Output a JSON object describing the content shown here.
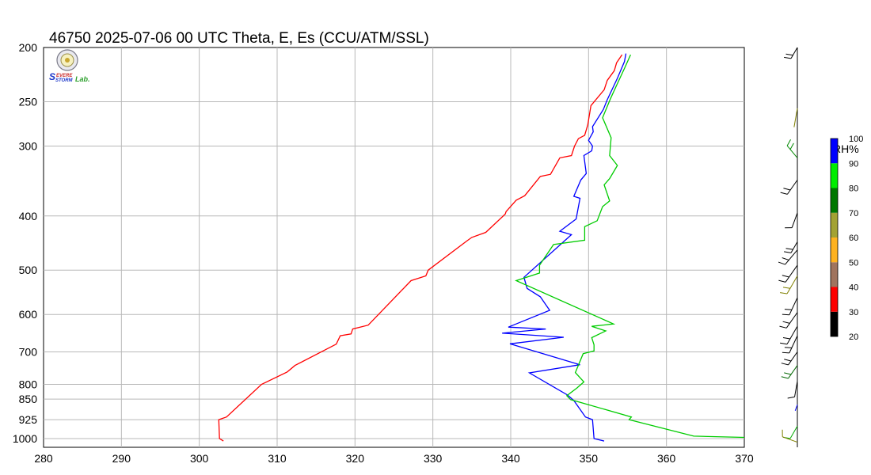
{
  "chart_data": {
    "type": "line",
    "title": "46750  2025-07-06 00 UTC  Theta, E, Es (CCU/ATM/SSL)",
    "xlim": [
      280,
      370
    ],
    "x_ticks": [
      "280",
      "290",
      "300",
      "310",
      "320",
      "330",
      "340",
      "350",
      "360",
      "370"
    ],
    "y_ticks": [
      {
        "p": 200,
        "label": "200"
      },
      {
        "p": 250,
        "label": "250"
      },
      {
        "p": 300,
        "label": "300"
      },
      {
        "p": 400,
        "label": "400"
      },
      {
        "p": 500,
        "label": "500"
      },
      {
        "p": 600,
        "label": "600"
      },
      {
        "p": 700,
        "label": "700"
      },
      {
        "p": 800,
        "label": "800"
      },
      {
        "p": 850,
        "label": "850"
      },
      {
        "p": 925,
        "label": "925"
      },
      {
        "p": 1000,
        "label": "1000"
      }
    ],
    "grid": true,
    "series": [
      {
        "color": "#ff0000",
        "points": [
          [
            303.1,
            1010
          ],
          [
            302.6,
            1000
          ],
          [
            302.5,
            925
          ],
          [
            303.5,
            915
          ],
          [
            308.0,
            800
          ],
          [
            311.3,
            760
          ],
          [
            312.3,
            740
          ],
          [
            317.6,
            678
          ],
          [
            318.1,
            655
          ],
          [
            319.5,
            650
          ],
          [
            319.7,
            637
          ],
          [
            321.7,
            627
          ],
          [
            327.2,
            522
          ],
          [
            329.1,
            512
          ],
          [
            329.4,
            500
          ],
          [
            334.4,
            443
          ],
          [
            335.0,
            437
          ],
          [
            336.8,
            428
          ],
          [
            339.3,
            397
          ],
          [
            339.4,
            393
          ],
          [
            340.7,
            375
          ],
          [
            341.8,
            368
          ],
          [
            343.8,
            340
          ],
          [
            345.1,
            337
          ],
          [
            346.3,
            315
          ],
          [
            347.8,
            312
          ],
          [
            348.2,
            300
          ],
          [
            348.7,
            291
          ],
          [
            349.5,
            287
          ],
          [
            349.9,
            275
          ],
          [
            350.3,
            254
          ],
          [
            352.0,
            238
          ],
          [
            352.4,
            229
          ],
          [
            353.3,
            220
          ],
          [
            353.6,
            213
          ],
          [
            354.3,
            206
          ]
        ]
      },
      {
        "color": "#0000ff",
        "points": [
          [
            352.0,
            1010
          ],
          [
            350.7,
            1000
          ],
          [
            350.5,
            925
          ],
          [
            349.6,
            915
          ],
          [
            348.1,
            855
          ],
          [
            347.3,
            836
          ],
          [
            345.6,
            810
          ],
          [
            342.4,
            763
          ],
          [
            348.9,
            738
          ],
          [
            339.9,
            677
          ],
          [
            346.8,
            659
          ],
          [
            338.9,
            648
          ],
          [
            344.5,
            637
          ],
          [
            339.7,
            632
          ],
          [
            345.0,
            590
          ],
          [
            343.8,
            558
          ],
          [
            342.1,
            539
          ],
          [
            341.7,
            515
          ],
          [
            347.8,
            432
          ],
          [
            346.3,
            426
          ],
          [
            348.4,
            405
          ],
          [
            348.9,
            372
          ],
          [
            348.1,
            369
          ],
          [
            349.0,
            345
          ],
          [
            349.7,
            336
          ],
          [
            349.4,
            312
          ],
          [
            350.4,
            306
          ],
          [
            350.5,
            300
          ],
          [
            350.0,
            293
          ],
          [
            350.6,
            283
          ],
          [
            350.5,
            277
          ],
          [
            351.9,
            258
          ],
          [
            352.4,
            248
          ],
          [
            353.7,
            227
          ],
          [
            354.6,
            212
          ],
          [
            354.8,
            205
          ]
        ]
      },
      {
        "color": "#00cc00",
        "points": [
          [
            370.0,
            995
          ],
          [
            363.5,
            990
          ],
          [
            355.2,
            925
          ],
          [
            355.5,
            915
          ],
          [
            347.7,
            852
          ],
          [
            347.2,
            838
          ],
          [
            348.5,
            812
          ],
          [
            349.4,
            792
          ],
          [
            348.3,
            762
          ],
          [
            349.3,
            705
          ],
          [
            350.7,
            697
          ],
          [
            350.7,
            680
          ],
          [
            350.4,
            660
          ],
          [
            352.2,
            642
          ],
          [
            350.4,
            630
          ],
          [
            353.2,
            624
          ],
          [
            340.7,
            522
          ],
          [
            343.7,
            506
          ],
          [
            343.7,
            490
          ],
          [
            345.5,
            450
          ],
          [
            349.5,
            442
          ],
          [
            349.5,
            418
          ],
          [
            351.1,
            408
          ],
          [
            351.8,
            385
          ],
          [
            352.7,
            376
          ],
          [
            352.0,
            352
          ],
          [
            352.7,
            343
          ],
          [
            353.7,
            325
          ],
          [
            352.7,
            312
          ],
          [
            352.9,
            290
          ],
          [
            351.8,
            267
          ],
          [
            352.8,
            247
          ],
          [
            353.7,
            232
          ],
          [
            354.6,
            218
          ],
          [
            355.4,
            206
          ]
        ]
      }
    ],
    "colorbar": {
      "label": "RH%",
      "ticks": [
        "100",
        "90",
        "80",
        "70",
        "60",
        "50",
        "40",
        "30",
        "20"
      ],
      "colors": [
        "#000000",
        "#ff0000",
        "#a0745e",
        "#ffb21f",
        "#a3a233",
        "#007700",
        "#00ee00",
        "#0000ff"
      ]
    },
    "wind_barbs": [
      {
        "p": 200,
        "color": "#000000",
        "len": 16,
        "angle": 240,
        "barbs": 2
      },
      {
        "p": 257,
        "color": "#808000",
        "len": 24,
        "angle": 260,
        "barbs": 0
      },
      {
        "p": 315,
        "color": "#008800",
        "len": 20,
        "angle": 130,
        "barbs": 2
      },
      {
        "p": 345,
        "color": "#000000",
        "len": 22,
        "angle": 235,
        "barbs": 2
      },
      {
        "p": 395,
        "color": "#000000",
        "len": 20,
        "angle": 250,
        "barbs": 1
      },
      {
        "p": 445,
        "color": "#000000",
        "len": 16,
        "angle": 240,
        "barbs": 2
      },
      {
        "p": 460,
        "color": "#000000",
        "len": 24,
        "angle": 230,
        "barbs": 2
      },
      {
        "p": 490,
        "color": "#000000",
        "len": 26,
        "angle": 235,
        "barbs": 2
      },
      {
        "p": 512,
        "color": "#808000",
        "len": 26,
        "angle": 240,
        "barbs": 2
      },
      {
        "p": 560,
        "color": "#000000",
        "len": 24,
        "angle": 245,
        "barbs": 2
      },
      {
        "p": 595,
        "color": "#000000",
        "len": 24,
        "angle": 235,
        "barbs": 2
      },
      {
        "p": 630,
        "color": "#000000",
        "len": 26,
        "angle": 240,
        "barbs": 2
      },
      {
        "p": 655,
        "color": "#000000",
        "len": 24,
        "angle": 245,
        "barbs": 2
      },
      {
        "p": 700,
        "color": "#000000",
        "len": 20,
        "angle": 235,
        "barbs": 2
      },
      {
        "p": 740,
        "color": "#006600",
        "len": 20,
        "angle": 235,
        "barbs": 2
      },
      {
        "p": 790,
        "color": "#000000",
        "len": 20,
        "angle": 260,
        "barbs": 1
      },
      {
        "p": 870,
        "color": "#0000ff",
        "len": 8,
        "angle": 250,
        "barbs": 0
      },
      {
        "p": 950,
        "color": "#00aa00",
        "len": 18,
        "angle": 240,
        "barbs": 1
      },
      {
        "p": 1015,
        "color": "#808000",
        "len": 20,
        "angle": 160,
        "barbs": 1
      }
    ]
  }
}
